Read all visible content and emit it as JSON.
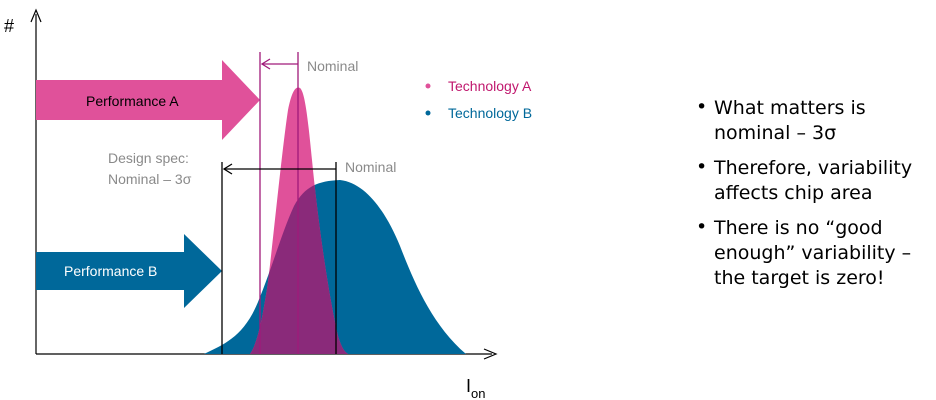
{
  "axes": {
    "y_label": "#",
    "x_label_main": "I",
    "x_label_sub": "on"
  },
  "arrows": {
    "perf_a": "Performance A",
    "perf_b": "Performance B"
  },
  "labels": {
    "nominal_a": "Nominal",
    "nominal_b": "Nominal",
    "design_spec_line1": "Design spec:",
    "design_spec_line2": "Nominal – 3σ"
  },
  "legend": {
    "tech_a": "Technology A",
    "tech_b": "Technology B"
  },
  "bullets": [
    "What matters is nominal – 3σ",
    "Therefore, variability affects chip area",
    "There is no “good enough” variability – the target is zero!"
  ],
  "colors": {
    "tech_a": "#e0519a",
    "tech_b": "#00689a",
    "overlap": "#8a2a7a",
    "nominal_line_a": "#a01a7a",
    "axis": "#000000",
    "label_gray": "#8a8a8a"
  }
}
